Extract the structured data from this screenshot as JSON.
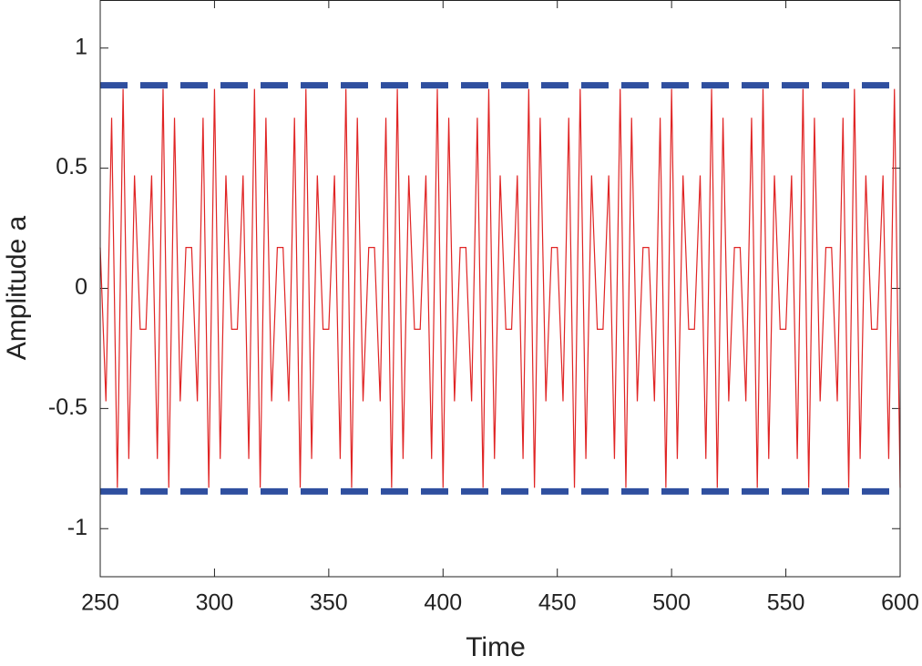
{
  "chart_data": {
    "type": "line",
    "xlabel": "Time",
    "ylabel": "Amplitude a",
    "xlim": [
      250,
      600
    ],
    "xticks": [
      250,
      300,
      350,
      400,
      450,
      500,
      550,
      600
    ],
    "ylim": [
      -1.2,
      1.2
    ],
    "yticks": [
      -1,
      -0.5,
      0,
      0.5,
      1
    ],
    "grid": false,
    "series": [
      {
        "color": "#e02424",
        "style": "solid",
        "x": [
          250,
          252.5,
          255,
          257.5,
          260,
          262.5,
          265,
          267.5,
          270,
          272.5,
          275,
          277.5,
          280,
          282.5,
          285,
          287.5,
          290,
          292.5,
          295,
          297.5,
          300,
          302.5,
          305,
          307.5,
          310,
          312.5,
          315,
          317.5,
          320,
          322.5,
          325,
          327.5,
          330,
          332.5,
          335,
          337.5,
          340,
          342.5,
          345,
          347.5,
          350,
          352.5,
          355,
          357.5,
          360,
          362.5,
          365,
          367.5,
          370,
          372.5,
          375,
          377.5,
          380,
          382.5,
          385,
          387.5,
          390,
          392.5,
          395,
          397.5,
          400,
          402.5,
          405,
          407.5,
          410,
          412.5,
          415,
          417.5,
          420,
          422.5,
          425,
          427.5,
          430,
          432.5,
          435,
          437.5,
          440,
          442.5,
          445,
          447.5,
          450,
          452.5,
          455,
          457.5,
          460,
          462.5,
          465,
          467.5,
          470,
          472.5,
          475,
          477.5,
          480,
          482.5,
          485,
          487.5,
          490,
          492.5,
          495,
          497.5,
          500,
          502.5,
          505,
          507.5,
          510,
          512.5,
          515,
          517.5,
          520,
          522.5,
          525,
          527.5,
          530,
          532.5,
          535,
          537.5,
          540,
          542.5,
          545,
          547.5,
          550,
          552.5,
          555,
          557.5,
          560,
          562.5,
          565,
          567.5,
          570,
          572.5,
          575,
          577.5,
          580,
          582.5,
          585,
          587.5,
          590,
          592.5,
          595,
          597.5,
          600
        ],
        "values": [
          0.17,
          -0.47,
          0.71,
          -0.83,
          0.83,
          -0.71,
          0.47,
          -0.17,
          -0.17,
          0.47,
          -0.71,
          0.83,
          -0.83,
          0.71,
          -0.47,
          0.17,
          0.17,
          -0.47,
          0.71,
          -0.83,
          0.83,
          -0.71,
          0.47,
          -0.17,
          -0.17,
          0.47,
          -0.71,
          0.83,
          -0.83,
          0.71,
          -0.47,
          0.17,
          0.17,
          -0.47,
          0.71,
          -0.83,
          0.83,
          -0.71,
          0.47,
          -0.17,
          -0.17,
          0.47,
          -0.71,
          0.83,
          -0.83,
          0.71,
          -0.47,
          0.17,
          0.17,
          -0.47,
          0.71,
          -0.83,
          0.83,
          -0.71,
          0.47,
          -0.17,
          -0.17,
          0.47,
          -0.71,
          0.83,
          -0.83,
          0.71,
          -0.47,
          0.17,
          0.17,
          -0.47,
          0.71,
          -0.83,
          0.83,
          -0.71,
          0.47,
          -0.17,
          -0.17,
          0.47,
          -0.71,
          0.83,
          -0.83,
          0.71,
          -0.47,
          0.17,
          0.17,
          -0.47,
          0.71,
          -0.83,
          0.83,
          -0.71,
          0.47,
          -0.17,
          -0.17,
          0.47,
          -0.71,
          0.83,
          -0.83,
          0.71,
          -0.47,
          0.17,
          0.17,
          -0.47,
          0.71,
          -0.83,
          0.83,
          -0.71,
          0.47,
          -0.17,
          -0.17,
          0.47,
          -0.71,
          0.83,
          -0.83,
          0.71,
          -0.47,
          0.17,
          0.17,
          -0.47,
          0.71,
          -0.83,
          0.83,
          -0.71,
          0.47,
          -0.17,
          -0.17,
          0.47,
          -0.71,
          0.83,
          -0.83,
          0.71,
          -0.47,
          0.17,
          0.17,
          -0.47,
          0.71,
          -0.83,
          0.83,
          -0.71,
          0.47,
          -0.17,
          -0.17,
          0.47,
          -0.71,
          0.83,
          -0.83
        ]
      },
      {
        "color": "#2f4f9f",
        "style": "dashed",
        "x": [
          250,
          600
        ],
        "values": [
          0.845,
          0.845
        ]
      },
      {
        "color": "#2f4f9f",
        "style": "dashed",
        "x": [
          250,
          600
        ],
        "values": [
          -0.845,
          -0.845
        ]
      }
    ]
  }
}
